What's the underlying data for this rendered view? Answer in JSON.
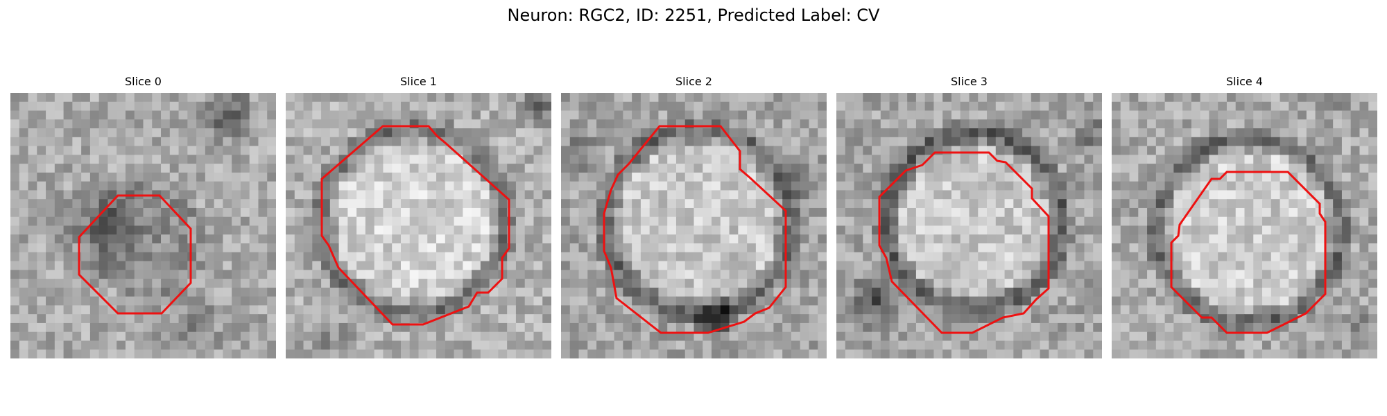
{
  "figure": {
    "title": "Neuron: RGC2, ID: 2251, Predicted Label: CV"
  },
  "colors": {
    "contour": "#ee1111"
  },
  "panels": [
    {
      "title": "Slice 0"
    },
    {
      "title": "Slice 1"
    },
    {
      "title": "Slice 2"
    },
    {
      "title": "Slice 3"
    },
    {
      "title": "Slice 4"
    }
  ]
}
